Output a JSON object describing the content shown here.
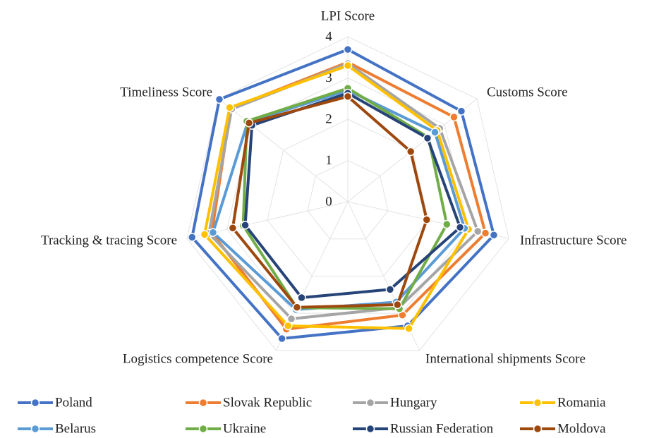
{
  "chart_data": {
    "type": "radar",
    "categories": [
      "LPI Score",
      "Customs Score",
      "Infrastructure Score",
      "International shipments Score",
      "Logistics competence Score",
      "Tracking & tracing Score",
      "Timeliness Score"
    ],
    "ylim": [
      0,
      4
    ],
    "yticks": [
      0,
      1,
      2,
      3,
      4
    ],
    "grid": true,
    "legend": "bottom",
    "series": [
      {
        "name": "Poland",
        "color": "#4472c4",
        "values": [
          3.69,
          3.52,
          3.63,
          3.34,
          3.68,
          3.87,
          3.98
        ]
      },
      {
        "name": "Slovak Republic",
        "color": "#ed7d31",
        "values": [
          3.38,
          3.29,
          3.42,
          3.05,
          3.43,
          3.38,
          3.63
        ]
      },
      {
        "name": "Hungary",
        "color": "#a5a5a5",
        "values": [
          3.35,
          2.85,
          3.23,
          2.85,
          3.15,
          3.45,
          3.6
        ]
      },
      {
        "name": "Romania",
        "color": "#ffc000",
        "values": [
          3.3,
          2.77,
          3.0,
          3.41,
          3.34,
          3.56,
          3.66
        ]
      },
      {
        "name": "Belarus",
        "color": "#5b9bd5",
        "values": [
          2.7,
          2.7,
          2.9,
          2.7,
          2.9,
          3.35,
          3.1
        ]
      },
      {
        "name": "Ukraine",
        "color": "#70ad47",
        "values": [
          2.75,
          2.5,
          2.46,
          2.88,
          2.85,
          2.6,
          3.13
        ]
      },
      {
        "name": "Russian Federation",
        "color": "#264478",
        "values": [
          2.63,
          2.47,
          2.79,
          2.36,
          2.58,
          2.55,
          2.97
        ]
      },
      {
        "name": "Moldova",
        "color": "#9e480e",
        "values": [
          2.55,
          1.95,
          1.96,
          2.77,
          2.84,
          2.86,
          3.06
        ]
      }
    ]
  }
}
